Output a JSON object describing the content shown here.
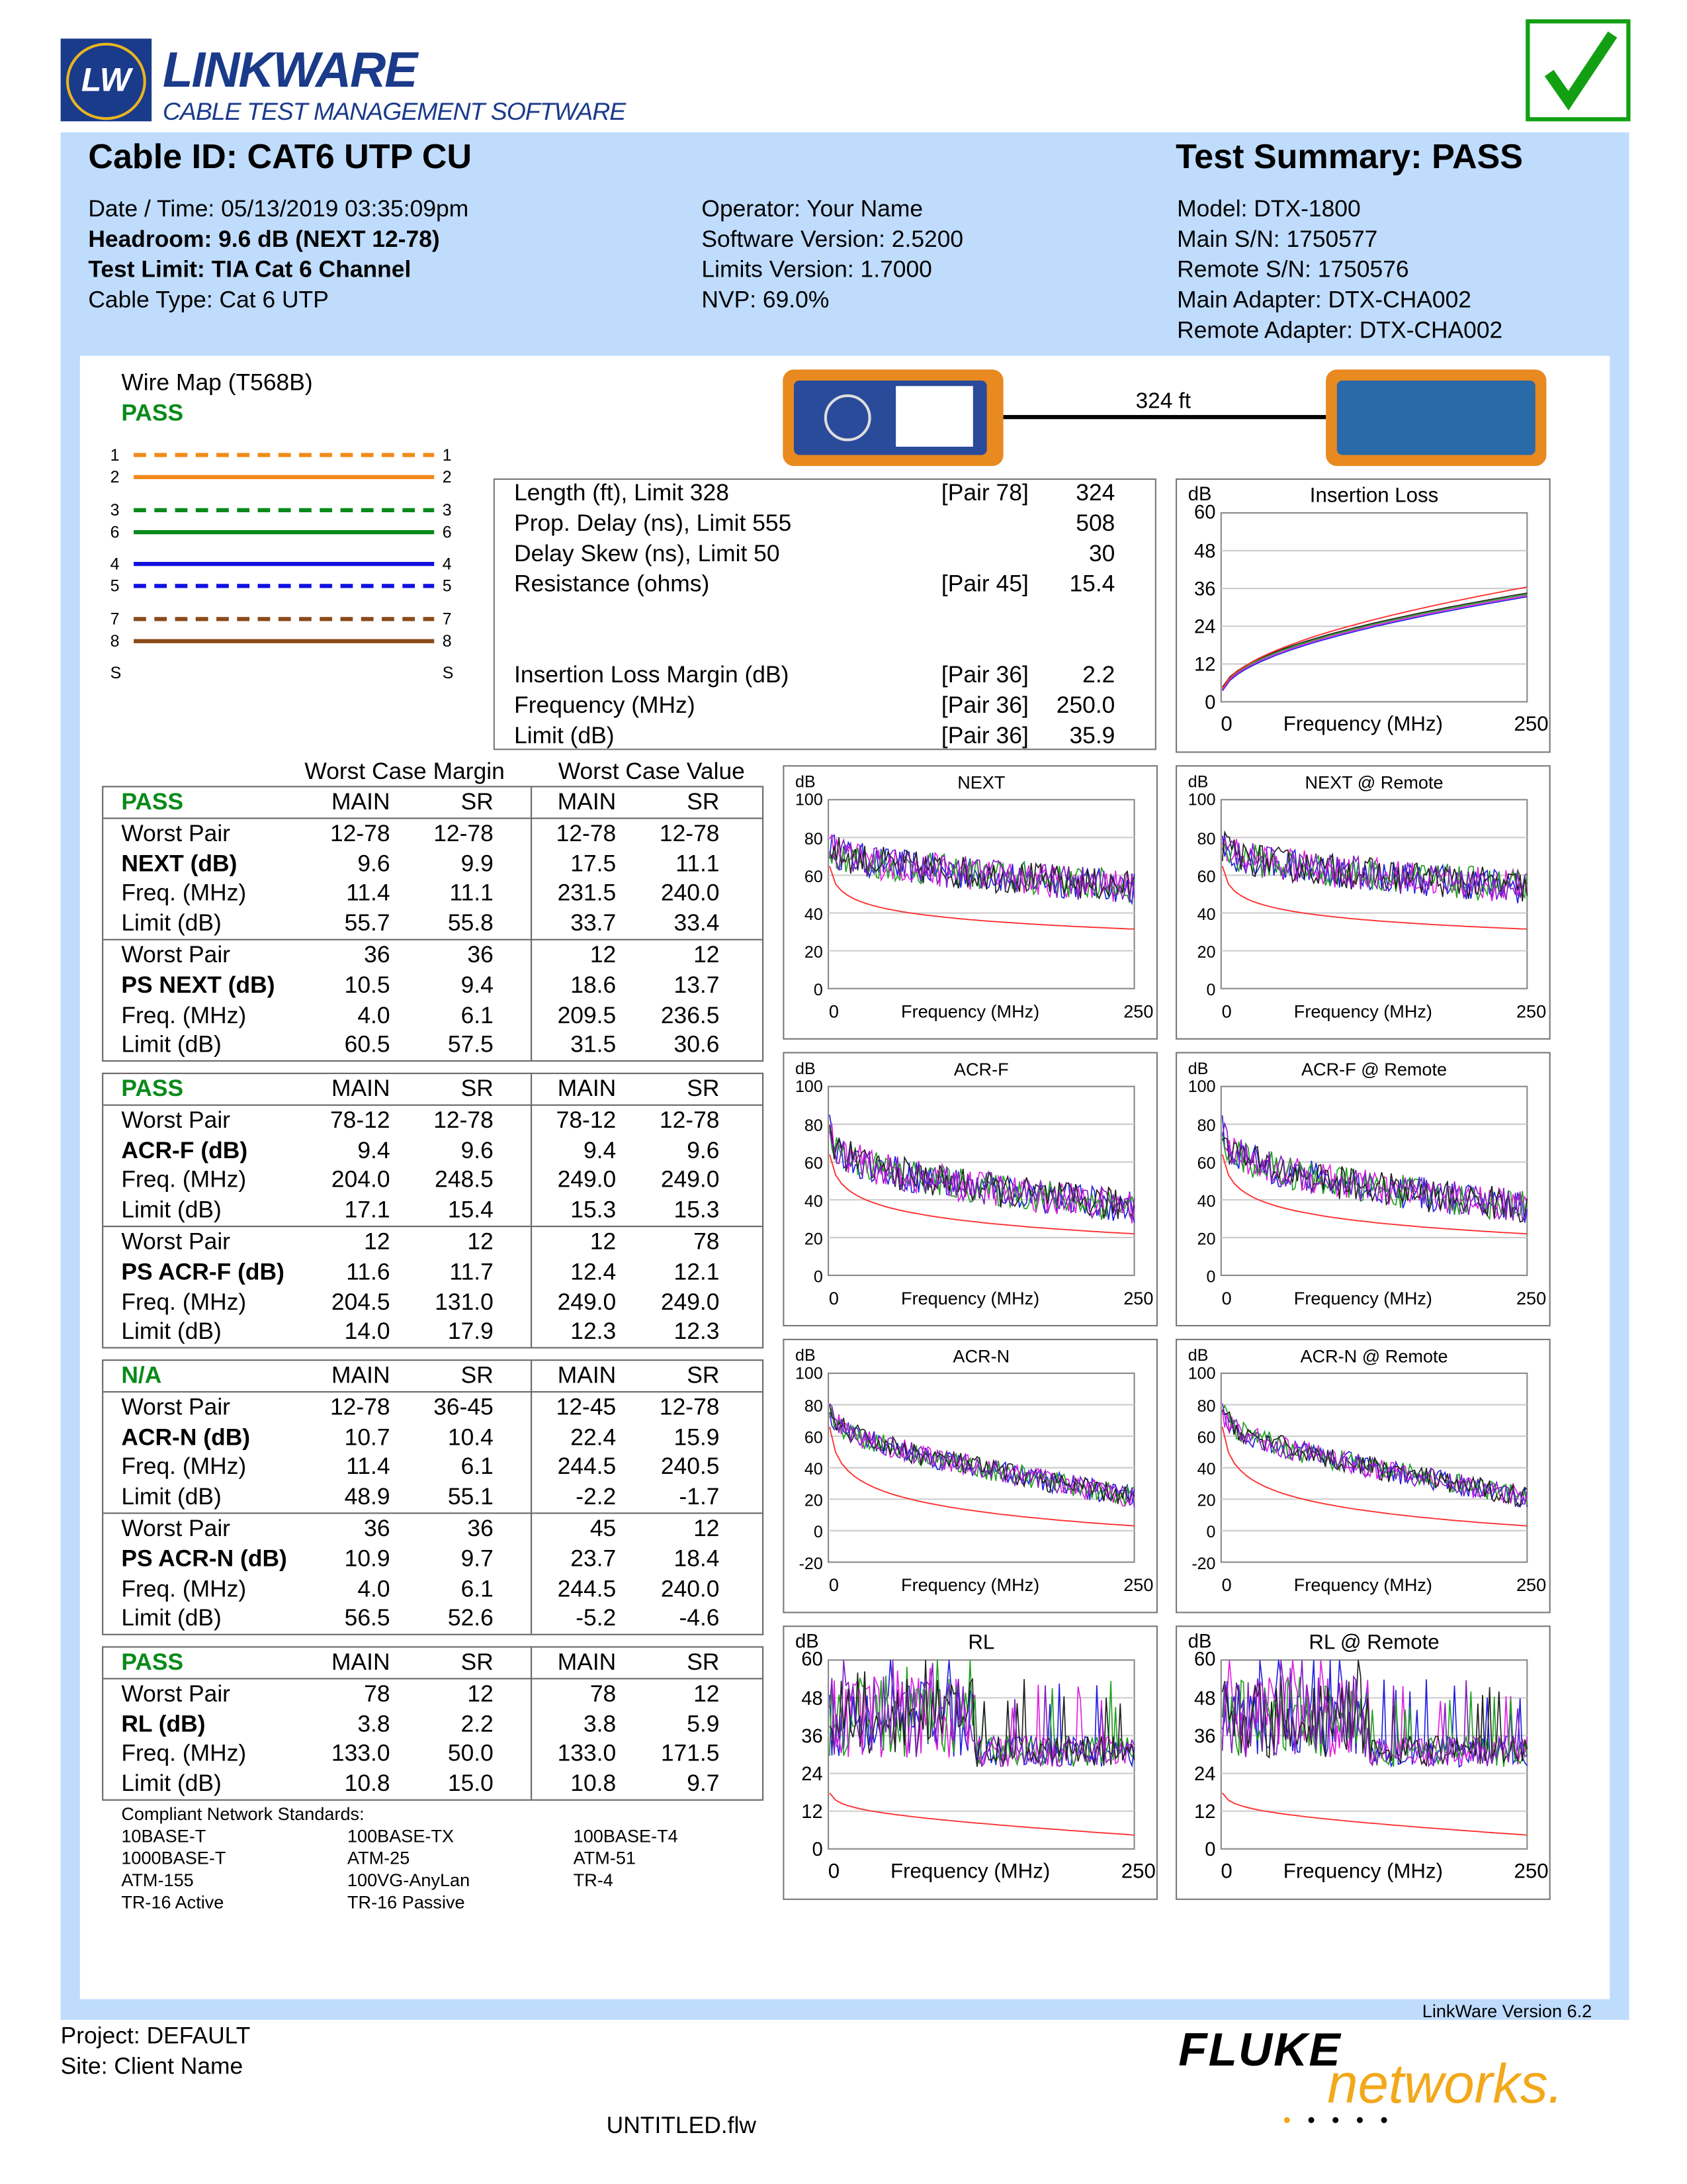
{
  "logo": {
    "mark": "LW",
    "name": "LINKWARE",
    "tagline": "CABLE TEST MANAGEMENT SOFTWARE"
  },
  "result_icon": "checkmark-icon",
  "colors": {
    "band": "#bfdcfd",
    "pass": "#0a8a1a",
    "check": "#12a012",
    "limit": "#ff3030"
  },
  "header": {
    "cable_id": "Cable ID: CAT6 UTP CU",
    "summary": "Test Summary: PASS"
  },
  "info": {
    "col1": [
      {
        "t": "Date / Time: 05/13/2019 03:35:09pm",
        "b": false
      },
      {
        "t": "Headroom: 9.6 dB (NEXT 12-78)",
        "b": true
      },
      {
        "t": "Test Limit: TIA Cat 6 Channel",
        "b": true
      },
      {
        "t": "Cable Type: Cat 6 UTP",
        "b": false
      }
    ],
    "col2": [
      "Operator: Your Name",
      "Software Version: 2.5200",
      "Limits Version: 1.7000",
      "NVP: 69.0%"
    ],
    "col3": [
      "Model: DTX-1800",
      "Main S/N: 1750577",
      "Remote S/N: 1750576",
      "Main Adapter: DTX-CHA002",
      "Remote Adapter: DTX-CHA002"
    ]
  },
  "wiremap": {
    "title": "Wire Map (T568B)",
    "status": "PASS",
    "pins": [
      "1",
      "2",
      "3",
      "6",
      "4",
      "5",
      "7",
      "8"
    ],
    "shield": "S",
    "wires": [
      {
        "c": "#f28a1a",
        "d": true
      },
      {
        "c": "#f28a1a",
        "d": false
      },
      {
        "c": "#0a8a1a",
        "d": true
      },
      {
        "c": "#0a8a1a",
        "d": false
      },
      {
        "c": "#1010e0",
        "d": false
      },
      {
        "c": "#1010e0",
        "d": true
      },
      {
        "c": "#8a4a1a",
        "d": true
      },
      {
        "c": "#8a4a1a",
        "d": false
      }
    ]
  },
  "length_link": "324 ft",
  "measurements": [
    {
      "label": "Length (ft), Limit 328",
      "pair": "[Pair 78]",
      "value": "324"
    },
    {
      "label": "Prop. Delay (ns), Limit 555",
      "pair": "",
      "value": "508"
    },
    {
      "label": "Delay Skew (ns), Limit 50",
      "pair": "",
      "value": "30"
    },
    {
      "label": "Resistance (ohms)",
      "pair": "[Pair 45]",
      "value": "15.4"
    },
    {
      "label": "Insertion Loss Margin (dB)",
      "pair": "[Pair 36]",
      "value": "2.2"
    },
    {
      "label": "Frequency (MHz)",
      "pair": "[Pair 36]",
      "value": "250.0"
    },
    {
      "label": "Limit (dB)",
      "pair": "[Pair 36]",
      "value": "35.9"
    }
  ],
  "table_headers": {
    "margin": "Worst Case Margin",
    "value": "Worst Case Value"
  },
  "tables": [
    {
      "status": "PASS",
      "cols": [
        "MAIN",
        "SR",
        "MAIN",
        "SR"
      ],
      "groups": [
        [
          [
            "Worst Pair",
            0,
            "12-78",
            "12-78",
            "12-78",
            "12-78"
          ],
          [
            "NEXT (dB)",
            1,
            "9.6",
            "9.9",
            "17.5",
            "11.1"
          ],
          [
            "Freq. (MHz)",
            0,
            "11.4",
            "11.1",
            "231.5",
            "240.0"
          ],
          [
            "Limit (dB)",
            0,
            "55.7",
            "55.8",
            "33.7",
            "33.4"
          ]
        ],
        [
          [
            "Worst Pair",
            0,
            "36",
            "36",
            "12",
            "12"
          ],
          [
            "PS NEXT (dB)",
            1,
            "10.5",
            "9.4",
            "18.6",
            "13.7"
          ],
          [
            "Freq. (MHz)",
            0,
            "4.0",
            "6.1",
            "209.5",
            "236.5"
          ],
          [
            "Limit (dB)",
            0,
            "60.5",
            "57.5",
            "31.5",
            "30.6"
          ]
        ]
      ]
    },
    {
      "status": "PASS",
      "cols": [
        "MAIN",
        "SR",
        "MAIN",
        "SR"
      ],
      "groups": [
        [
          [
            "Worst Pair",
            0,
            "78-12",
            "12-78",
            "78-12",
            "12-78"
          ],
          [
            "ACR-F (dB)",
            1,
            "9.4",
            "9.6",
            "9.4",
            "9.6"
          ],
          [
            "Freq. (MHz)",
            0,
            "204.0",
            "248.5",
            "249.0",
            "249.0"
          ],
          [
            "Limit (dB)",
            0,
            "17.1",
            "15.4",
            "15.3",
            "15.3"
          ]
        ],
        [
          [
            "Worst Pair",
            0,
            "12",
            "12",
            "12",
            "78"
          ],
          [
            "PS ACR-F (dB)",
            1,
            "11.6",
            "11.7",
            "12.4",
            "12.1"
          ],
          [
            "Freq. (MHz)",
            0,
            "204.5",
            "131.0",
            "249.0",
            "249.0"
          ],
          [
            "Limit (dB)",
            0,
            "14.0",
            "17.9",
            "12.3",
            "12.3"
          ]
        ]
      ]
    },
    {
      "status": "N/A",
      "cols": [
        "MAIN",
        "SR",
        "MAIN",
        "SR"
      ],
      "groups": [
        [
          [
            "Worst Pair",
            0,
            "12-78",
            "36-45",
            "12-45",
            "12-78"
          ],
          [
            "ACR-N (dB)",
            1,
            "10.7",
            "10.4",
            "22.4",
            "15.9"
          ],
          [
            "Freq. (MHz)",
            0,
            "11.4",
            "6.1",
            "244.5",
            "240.5"
          ],
          [
            "Limit (dB)",
            0,
            "48.9",
            "55.1",
            "-2.2",
            "-1.7"
          ]
        ],
        [
          [
            "Worst Pair",
            0,
            "36",
            "36",
            "45",
            "12"
          ],
          [
            "PS ACR-N (dB)",
            1,
            "10.9",
            "9.7",
            "23.7",
            "18.4"
          ],
          [
            "Freq. (MHz)",
            0,
            "4.0",
            "6.1",
            "244.5",
            "240.0"
          ],
          [
            "Limit (dB)",
            0,
            "56.5",
            "52.6",
            "-5.2",
            "-4.6"
          ]
        ]
      ]
    },
    {
      "status": "PASS",
      "cols": [
        "MAIN",
        "SR",
        "MAIN",
        "SR"
      ],
      "groups": [
        [
          [
            "Worst Pair",
            0,
            "78",
            "12",
            "78",
            "12"
          ],
          [
            "RL (dB)",
            1,
            "3.8",
            "2.2",
            "3.8",
            "5.9"
          ],
          [
            "Freq. (MHz)",
            0,
            "133.0",
            "50.0",
            "133.0",
            "171.5"
          ],
          [
            "Limit (dB)",
            0,
            "10.8",
            "15.0",
            "10.8",
            "9.7"
          ]
        ]
      ]
    }
  ],
  "standards": {
    "title": "Compliant Network Standards:",
    "items": [
      "10BASE-T",
      "100BASE-TX",
      "100BASE-T4",
      "1000BASE-T",
      "ATM-25",
      "ATM-51",
      "ATM-155",
      "100VG-AnyLan",
      "TR-4",
      "TR-16 Active",
      "TR-16 Passive"
    ]
  },
  "chart_data": [
    {
      "id": "il",
      "type": "line",
      "title": "Insertion Loss",
      "ylabel": "dB",
      "xlabel": "Frequency (MHz)",
      "xlim": [
        0,
        250
      ],
      "yticks": [
        0,
        12,
        24,
        36,
        48,
        60
      ],
      "ylim": [
        0,
        60
      ],
      "xticks": [
        "0",
        "250"
      ],
      "big": true
    },
    {
      "id": "next",
      "type": "line",
      "title": "NEXT",
      "ylabel": "dB",
      "xlabel": "Frequency (MHz)",
      "xlim": [
        0,
        250
      ],
      "yticks": [
        0,
        20,
        40,
        60,
        80,
        100
      ],
      "ylim": [
        0,
        100
      ],
      "xticks": [
        "0",
        "250"
      ]
    },
    {
      "id": "next_r",
      "type": "line",
      "title": "NEXT @ Remote",
      "ylabel": "dB",
      "xlabel": "Frequency (MHz)",
      "xlim": [
        0,
        250
      ],
      "yticks": [
        0,
        20,
        40,
        60,
        80,
        100
      ],
      "ylim": [
        0,
        100
      ],
      "xticks": [
        "0",
        "250"
      ]
    },
    {
      "id": "acrf",
      "type": "line",
      "title": "ACR-F",
      "ylabel": "dB",
      "xlabel": "Frequency (MHz)",
      "xlim": [
        0,
        250
      ],
      "yticks": [
        0,
        20,
        40,
        60,
        80,
        100
      ],
      "ylim": [
        0,
        100
      ],
      "xticks": [
        "0",
        "250"
      ]
    },
    {
      "id": "acrf_r",
      "type": "line",
      "title": "ACR-F @ Remote",
      "ylabel": "dB",
      "xlabel": "Frequency (MHz)",
      "xlim": [
        0,
        250
      ],
      "yticks": [
        0,
        20,
        40,
        60,
        80,
        100
      ],
      "ylim": [
        0,
        100
      ],
      "xticks": [
        "0",
        "250"
      ]
    },
    {
      "id": "acrn",
      "type": "line",
      "title": "ACR-N",
      "ylabel": "dB",
      "xlabel": "Frequency (MHz)",
      "xlim": [
        0,
        250
      ],
      "yticks": [
        -20,
        0,
        20,
        40,
        60,
        80,
        100
      ],
      "ylim": [
        -20,
        100
      ],
      "xticks": [
        "0",
        "250"
      ]
    },
    {
      "id": "acrn_r",
      "type": "line",
      "title": "ACR-N @ Remote",
      "ylabel": "dB",
      "xlabel": "Frequency (MHz)",
      "xlim": [
        0,
        250
      ],
      "yticks": [
        -20,
        0,
        20,
        40,
        60,
        80,
        100
      ],
      "ylim": [
        -20,
        100
      ],
      "xticks": [
        "0",
        "250"
      ]
    },
    {
      "id": "rl",
      "type": "line",
      "title": "RL",
      "ylabel": "dB",
      "xlabel": "Frequency (MHz)",
      "xlim": [
        0,
        250
      ],
      "yticks": [
        0,
        12,
        24,
        36,
        48,
        60
      ],
      "ylim": [
        0,
        60
      ],
      "xticks": [
        "0",
        "250"
      ],
      "big": true
    },
    {
      "id": "rl_r",
      "type": "line",
      "title": "RL @ Remote",
      "ylabel": "dB",
      "xlabel": "Frequency (MHz)",
      "xlim": [
        0,
        250
      ],
      "yticks": [
        0,
        12,
        24,
        36,
        48,
        60
      ],
      "ylim": [
        0,
        60
      ],
      "xticks": [
        "0",
        "250"
      ],
      "big": true
    }
  ],
  "footer": {
    "project": "Project: DEFAULT",
    "site": "Site: Client Name",
    "file": "UNTITLED.flw",
    "version": "LinkWare Version  6.2",
    "brand1": "FLUKE",
    "brand2": "networks."
  }
}
